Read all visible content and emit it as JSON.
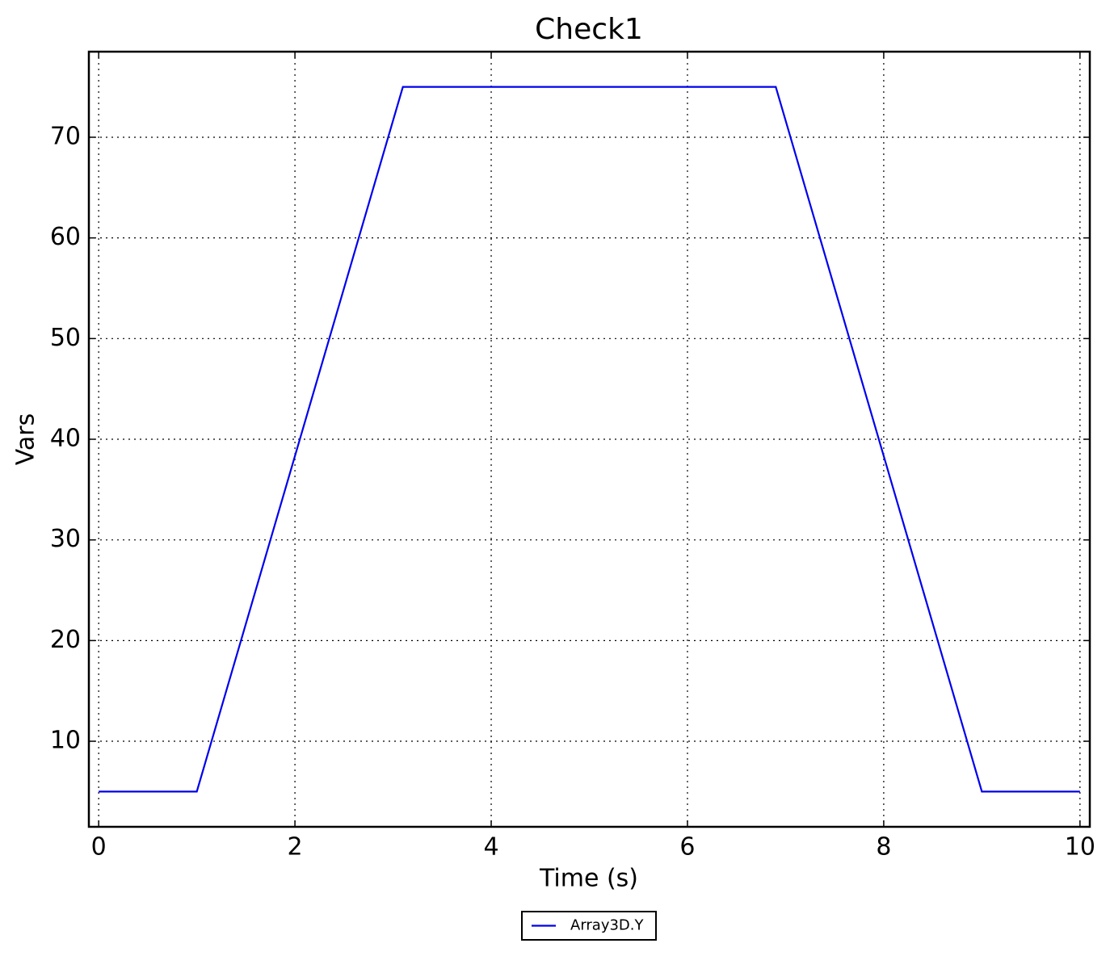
{
  "chart_data": {
    "type": "line",
    "title": "Check1",
    "x_label": "Time (s)",
    "y_label": "Vars",
    "x": [
      0,
      1,
      3.1,
      6.9,
      9,
      10
    ],
    "series": [
      {
        "name": "Array3D.Y",
        "color": "#0000ee",
        "values": [
          5,
          5,
          75,
          75,
          5,
          5
        ]
      }
    ],
    "xlim": [
      -0.1,
      10.1
    ],
    "xticks": [
      0,
      2,
      4,
      6,
      8,
      10
    ],
    "ylim": [
      1.5,
      78.5
    ],
    "yticks": [
      10,
      20,
      30,
      40,
      50,
      60,
      70
    ],
    "grid": true,
    "legend": "bottom"
  }
}
